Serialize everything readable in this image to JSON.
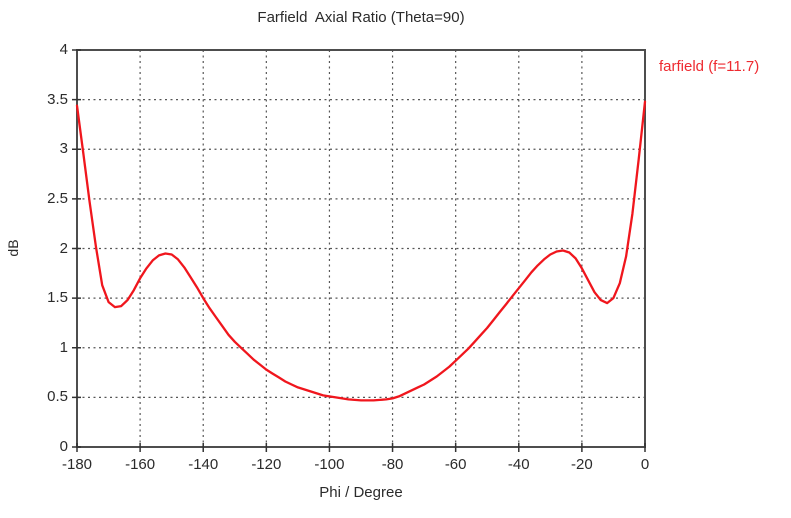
{
  "window": {
    "background": "#ffffff"
  },
  "colors": {
    "curve": "#f0161d",
    "legend_text": "#ee2a30",
    "grid": "#565656",
    "frame": "#4d4d4d",
    "tick": "#333333",
    "text": "#2b2b2b"
  },
  "chart_data": {
    "type": "line",
    "title": "Farfield  Axial Ratio (Theta=90)",
    "xlabel": "Phi / Degree",
    "ylabel": "dB",
    "xlim": [
      -180,
      0
    ],
    "ylim": [
      0,
      4
    ],
    "xticks": [
      -180,
      -160,
      -140,
      -120,
      -100,
      -80,
      -60,
      -40,
      -20,
      0
    ],
    "xtick_labels": [
      "-180",
      "-160",
      "-140",
      "-120",
      "-100",
      "-80",
      "-60",
      "-40",
      "-20",
      "0"
    ],
    "yticks": [
      0,
      0.5,
      1,
      1.5,
      2,
      2.5,
      3,
      3.5,
      4
    ],
    "ytick_labels": [
      "0",
      "0.5",
      "1",
      "1.5",
      "2",
      "2.5",
      "3",
      "3.5",
      "4"
    ],
    "grid": true,
    "grid_style": "dashed",
    "legend_position": "top-right-outside",
    "series": [
      {
        "name": "farfield (f=11.7)",
        "color": "#f0161d",
        "points": [
          [
            -180,
            3.44
          ],
          [
            -178,
            2.96
          ],
          [
            -176,
            2.47
          ],
          [
            -174,
            2.02
          ],
          [
            -172,
            1.63
          ],
          [
            -170,
            1.46
          ],
          [
            -168,
            1.41
          ],
          [
            -166,
            1.42
          ],
          [
            -164,
            1.48
          ],
          [
            -162,
            1.58
          ],
          [
            -160,
            1.7
          ],
          [
            -158,
            1.8
          ],
          [
            -156,
            1.88
          ],
          [
            -154,
            1.93
          ],
          [
            -152,
            1.95
          ],
          [
            -150,
            1.94
          ],
          [
            -148,
            1.89
          ],
          [
            -146,
            1.81
          ],
          [
            -144,
            1.71
          ],
          [
            -142,
            1.61
          ],
          [
            -140,
            1.5
          ],
          [
            -138,
            1.4
          ],
          [
            -136,
            1.31
          ],
          [
            -134,
            1.22
          ],
          [
            -132,
            1.13
          ],
          [
            -130,
            1.06
          ],
          [
            -128,
            1.0
          ],
          [
            -126,
            0.94
          ],
          [
            -124,
            0.88
          ],
          [
            -122,
            0.83
          ],
          [
            -120,
            0.78
          ],
          [
            -118,
            0.74
          ],
          [
            -116,
            0.7
          ],
          [
            -114,
            0.66
          ],
          [
            -112,
            0.63
          ],
          [
            -110,
            0.6
          ],
          [
            -108,
            0.58
          ],
          [
            -106,
            0.56
          ],
          [
            -104,
            0.54
          ],
          [
            -102,
            0.52
          ],
          [
            -100,
            0.51
          ],
          [
            -98,
            0.5
          ],
          [
            -96,
            0.49
          ],
          [
            -94,
            0.48
          ],
          [
            -92,
            0.475
          ],
          [
            -90,
            0.47
          ],
          [
            -88,
            0.47
          ],
          [
            -86,
            0.47
          ],
          [
            -84,
            0.475
          ],
          [
            -82,
            0.48
          ],
          [
            -80,
            0.49
          ],
          [
            -78,
            0.51
          ],
          [
            -76,
            0.54
          ],
          [
            -74,
            0.57
          ],
          [
            -72,
            0.6
          ],
          [
            -70,
            0.63
          ],
          [
            -68,
            0.67
          ],
          [
            -66,
            0.71
          ],
          [
            -64,
            0.76
          ],
          [
            -62,
            0.81
          ],
          [
            -60,
            0.87
          ],
          [
            -58,
            0.93
          ],
          [
            -56,
            0.99
          ],
          [
            -54,
            1.06
          ],
          [
            -52,
            1.13
          ],
          [
            -50,
            1.2
          ],
          [
            -48,
            1.28
          ],
          [
            -46,
            1.36
          ],
          [
            -44,
            1.44
          ],
          [
            -42,
            1.52
          ],
          [
            -40,
            1.6
          ],
          [
            -38,
            1.68
          ],
          [
            -36,
            1.76
          ],
          [
            -34,
            1.83
          ],
          [
            -32,
            1.89
          ],
          [
            -30,
            1.94
          ],
          [
            -28,
            1.97
          ],
          [
            -26,
            1.98
          ],
          [
            -24,
            1.96
          ],
          [
            -22,
            1.9
          ],
          [
            -20,
            1.8
          ],
          [
            -18,
            1.68
          ],
          [
            -16,
            1.56
          ],
          [
            -14,
            1.48
          ],
          [
            -12,
            1.45
          ],
          [
            -10,
            1.5
          ],
          [
            -8,
            1.65
          ],
          [
            -6,
            1.92
          ],
          [
            -4,
            2.35
          ],
          [
            -2,
            2.9
          ],
          [
            0,
            3.48
          ]
        ]
      }
    ]
  }
}
